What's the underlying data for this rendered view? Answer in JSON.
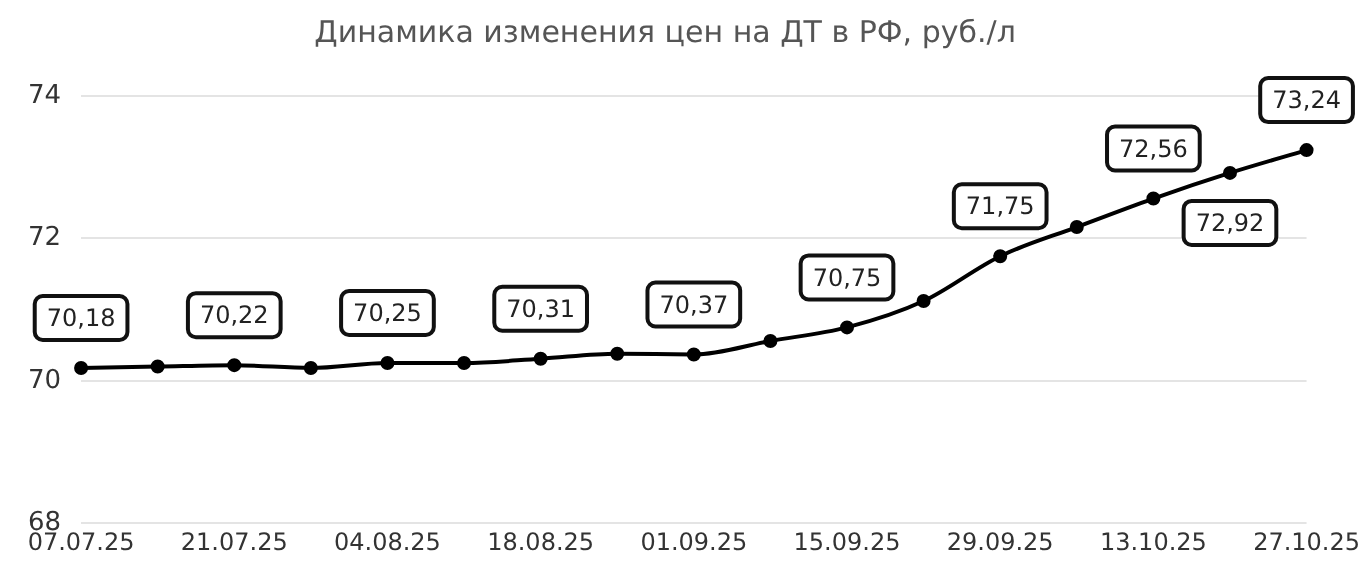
{
  "chart_data": {
    "type": "line",
    "title": "Динамика изменения цен на ДТ в РФ, руб./л",
    "categories": [
      "07.07.25",
      null,
      "21.07.25",
      null,
      "04.08.25",
      null,
      "18.08.25",
      null,
      "01.09.25",
      null,
      "15.09.25",
      null,
      "29.09.25",
      null,
      "13.10.25",
      null,
      "27.10.25"
    ],
    "series": [
      {
        "color": "#000000",
        "values": [
          70.18,
          70.2,
          70.22,
          70.18,
          70.25,
          70.25,
          70.31,
          70.38,
          70.37,
          70.56,
          70.75,
          71.12,
          71.75,
          72.16,
          72.56,
          72.92,
          73.24
        ],
        "value_labels": [
          "70,18",
          null,
          "70,22",
          null,
          "70,25",
          null,
          "70,31",
          null,
          "70,37",
          null,
          "70,75",
          null,
          "71,75",
          null,
          "72,56",
          "72,92",
          "73,24"
        ]
      }
    ],
    "ylim": [
      68,
      74
    ],
    "yticks": [
      68,
      70,
      72,
      74
    ],
    "grid": "y",
    "legend": false,
    "marker": "circle",
    "line_style": "solid"
  }
}
